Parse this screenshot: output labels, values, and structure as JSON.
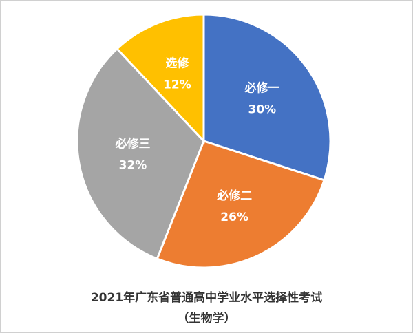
{
  "chart_data": {
    "type": "pie",
    "title": "2021年广东省普通高中学业水平选择性考试",
    "subtitle": "（生物学）",
    "categories": [
      "必修一",
      "必修二",
      "必修三",
      "选修"
    ],
    "values": [
      30,
      26,
      32,
      12
    ],
    "value_labels": [
      "30%",
      "26%",
      "32%",
      "12%"
    ],
    "colors": [
      "#4472c4",
      "#ed7d31",
      "#a5a5a5",
      "#ffc000"
    ]
  }
}
